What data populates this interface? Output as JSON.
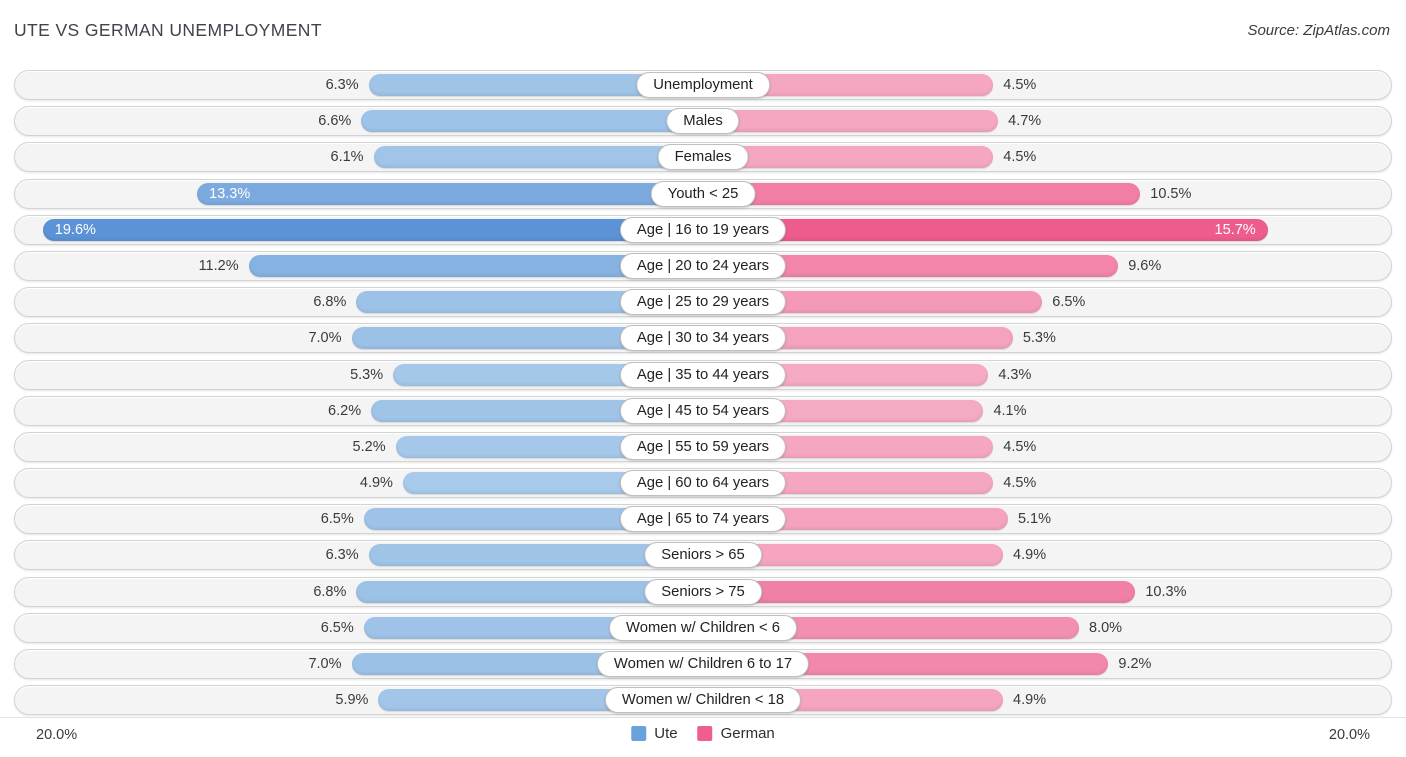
{
  "header": {
    "title": "UTE VS GERMAN UNEMPLOYMENT",
    "source": "Source: ZipAtlas.com"
  },
  "footer": {
    "left_axis_label": "20.0%",
    "right_axis_label": "20.0%"
  },
  "legend": [
    {
      "label": "Ute",
      "color": "#6aa2db"
    },
    {
      "label": "German",
      "color": "#ee5f8f"
    }
  ],
  "colors": {
    "blue_light": "#a7c9ea",
    "blue_dark": "#5b93d6",
    "pink_light": "#f5aac3",
    "pink_dark": "#ee5c8d",
    "track_bg": "#f4f4f4",
    "track_border": "#d3d3d3",
    "inside_label": "#ffffff"
  },
  "chart_data": {
    "type": "bar",
    "variant": "diverging-horizontal",
    "title": "UTE VS GERMAN UNEMPLOYMENT",
    "categories": [
      "Unemployment",
      "Males",
      "Females",
      "Youth < 25",
      "Age | 16 to 19 years",
      "Age | 20 to 24 years",
      "Age | 25 to 29 years",
      "Age | 30 to 34 years",
      "Age | 35 to 44 years",
      "Age | 45 to 54 years",
      "Age | 55 to 59 years",
      "Age | 60 to 64 years",
      "Age | 65 to 74 years",
      "Seniors > 65",
      "Seniors > 75",
      "Women w/ Children < 6",
      "Women w/ Children 6 to 17",
      "Women w/ Children < 18"
    ],
    "series": [
      {
        "name": "Ute",
        "side": "left",
        "values": [
          6.3,
          6.6,
          6.1,
          13.3,
          19.6,
          11.2,
          6.8,
          7.0,
          5.3,
          6.2,
          5.2,
          4.9,
          6.5,
          6.3,
          6.8,
          6.5,
          7.0,
          5.9
        ]
      },
      {
        "name": "German",
        "side": "right",
        "values": [
          4.5,
          4.7,
          4.5,
          10.5,
          15.7,
          9.6,
          6.5,
          5.3,
          4.3,
          4.1,
          4.5,
          4.5,
          5.1,
          4.9,
          10.3,
          8.0,
          9.2,
          4.9
        ]
      }
    ],
    "xlim": [
      0,
      20
    ],
    "axis_tick_format": "percent",
    "value_label_format": "0.0%",
    "legend_position": "bottom",
    "grid": false
  }
}
